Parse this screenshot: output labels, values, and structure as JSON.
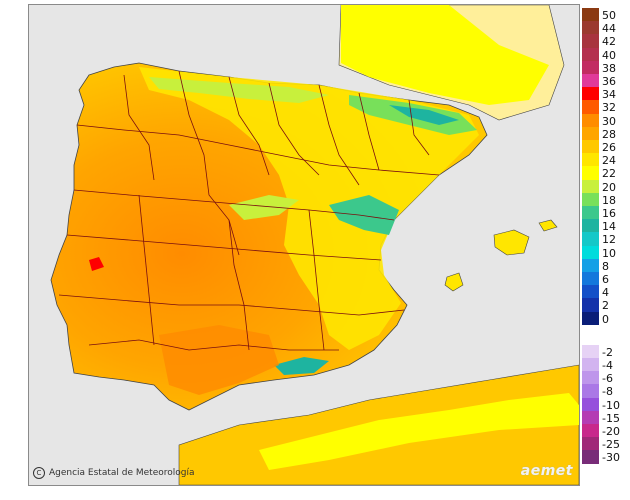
{
  "map": {
    "credit": "Agencia Estatal de Meteorología",
    "logo": "aemet",
    "colors": {
      "sea": "#e6e6e6",
      "france_land": "#ffef9a",
      "coastline": "#444444",
      "province_border": "#7a0f0f"
    }
  },
  "legend": {
    "positive": [
      {
        "label": "50",
        "color": "#8b3a12"
      },
      {
        "label": "44",
        "color": "#9b3a2f"
      },
      {
        "label": "42",
        "color": "#a8343e"
      },
      {
        "label": "40",
        "color": "#b4304e"
      },
      {
        "label": "38",
        "color": "#c22c62"
      },
      {
        "label": "36",
        "color": "#e03a9a"
      },
      {
        "label": "34",
        "color": "#ff0000"
      },
      {
        "label": "32",
        "color": "#ff5a00"
      },
      {
        "label": "30",
        "color": "#ff8c00"
      },
      {
        "label": "28",
        "color": "#ffa500"
      },
      {
        "label": "26",
        "color": "#ffc800"
      },
      {
        "label": "24",
        "color": "#ffe600"
      },
      {
        "label": "22",
        "color": "#ffff00"
      },
      {
        "label": "20",
        "color": "#c8f03c"
      },
      {
        "label": "18",
        "color": "#78e05a"
      },
      {
        "label": "16",
        "color": "#3cc88c"
      },
      {
        "label": "14",
        "color": "#1eb4a0"
      },
      {
        "label": "12",
        "color": "#14c8c8"
      },
      {
        "label": "10",
        "color": "#00dcdc"
      },
      {
        "label": "8",
        "color": "#14a0e6"
      },
      {
        "label": "6",
        "color": "#1478dc"
      },
      {
        "label": "4",
        "color": "#1450c8"
      },
      {
        "label": "2",
        "color": "#1432aa"
      },
      {
        "label": "0",
        "color": "#0a1e78"
      }
    ],
    "negative": [
      {
        "label": "-2",
        "color": "#e6d2f5"
      },
      {
        "label": "-4",
        "color": "#d2b4f0"
      },
      {
        "label": "-6",
        "color": "#be96eb"
      },
      {
        "label": "-8",
        "color": "#aa78e6"
      },
      {
        "label": "-10",
        "color": "#9650dc"
      },
      {
        "label": "-15",
        "color": "#b43cb4"
      },
      {
        "label": "-20",
        "color": "#c8288c"
      },
      {
        "label": "-25",
        "color": "#a02878"
      },
      {
        "label": "-30",
        "color": "#782c78"
      }
    ]
  }
}
